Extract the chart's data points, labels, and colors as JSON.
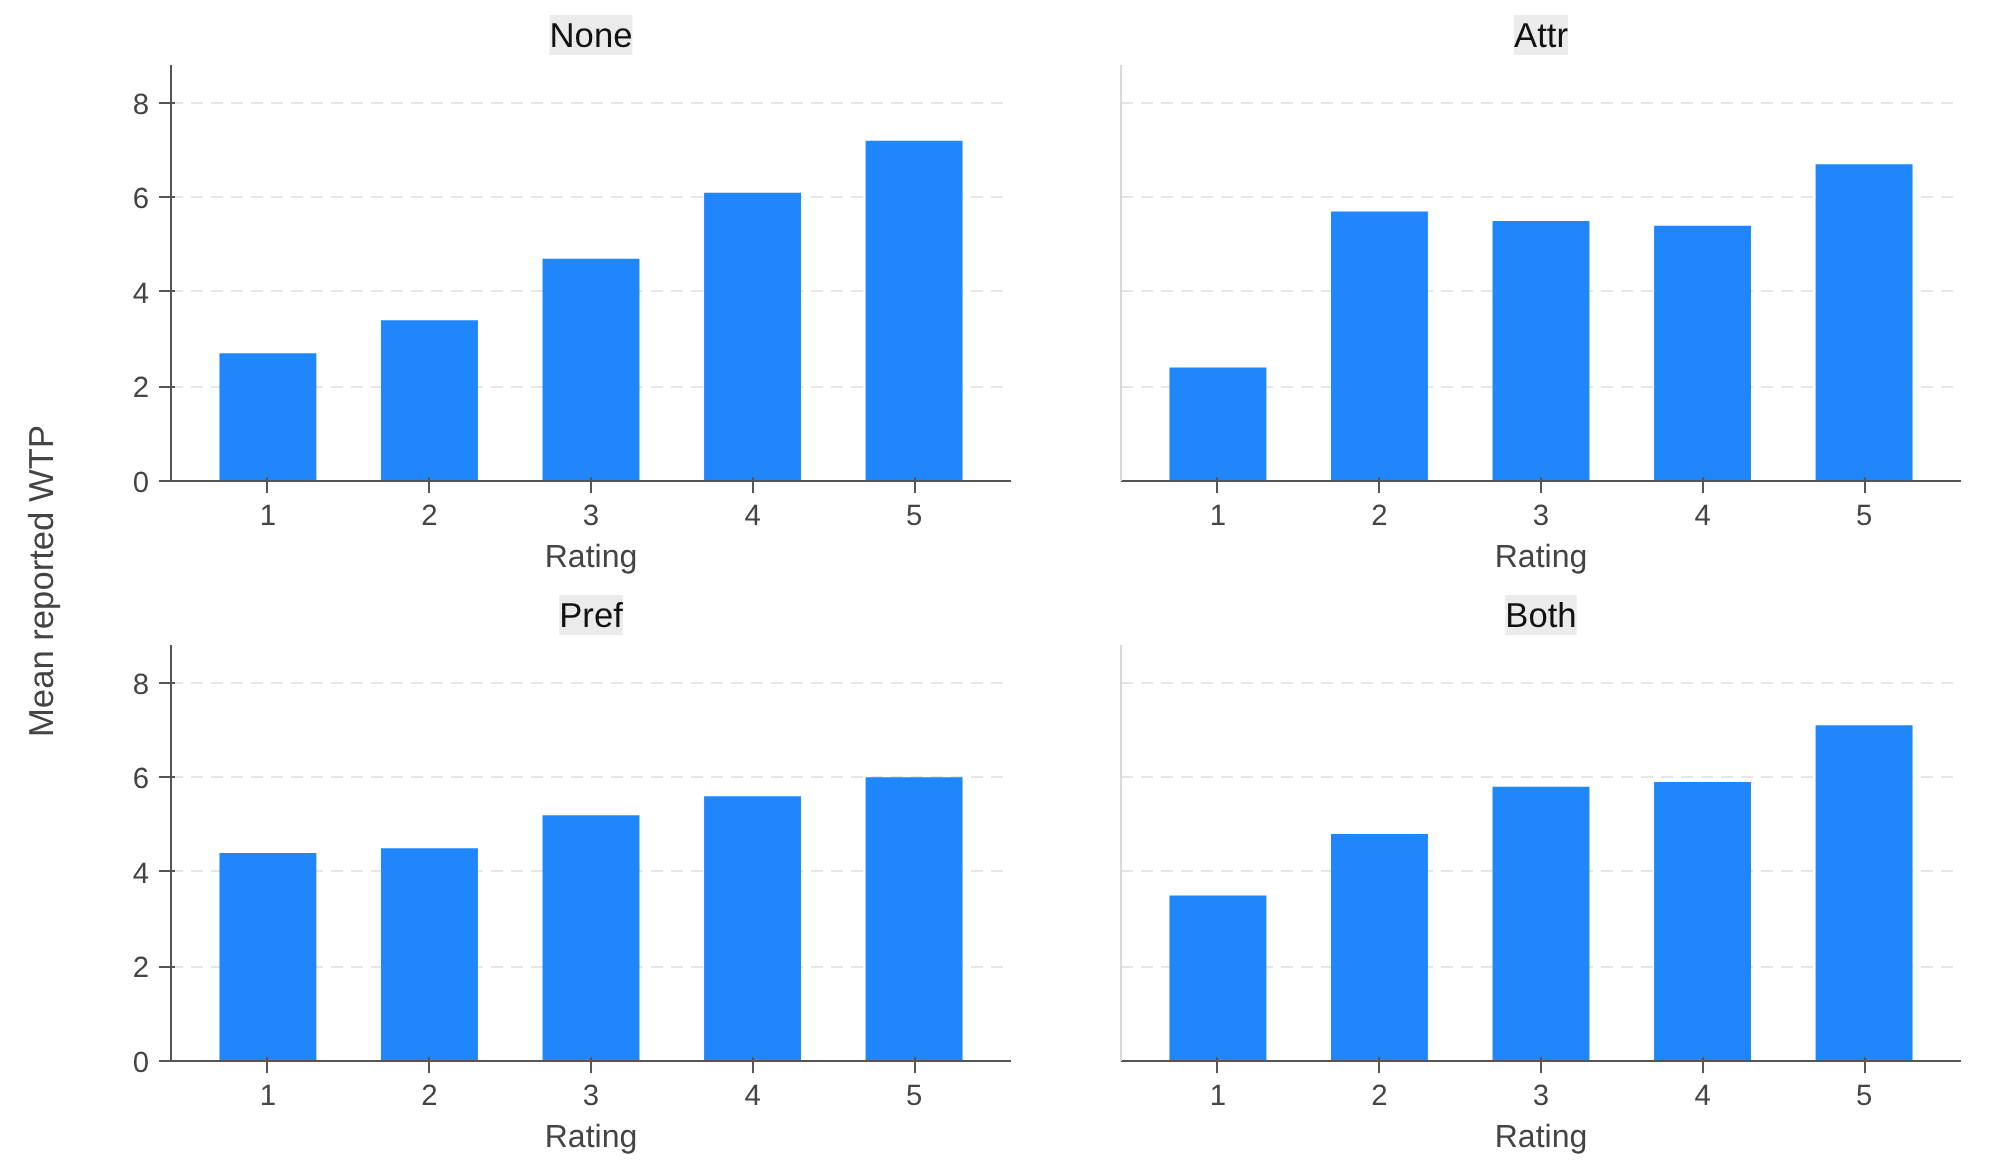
{
  "chart_data": [
    {
      "type": "bar",
      "title": "None",
      "xlabel": "Rating",
      "ylabel": "Mean reported WTP",
      "categories": [
        "1",
        "2",
        "3",
        "4",
        "5"
      ],
      "values": [
        2.7,
        3.4,
        4.7,
        6.1,
        7.2
      ],
      "color": "#1f87fb",
      "ylim": [
        0,
        8.8
      ],
      "yticks": [
        0,
        2,
        4,
        6,
        8
      ],
      "grid": "y"
    },
    {
      "type": "bar",
      "title": "Attr",
      "xlabel": "Rating",
      "categories": [
        "1",
        "2",
        "3",
        "4",
        "5"
      ],
      "values": [
        2.4,
        5.7,
        5.5,
        5.4,
        6.7
      ],
      "color": "#1f87fb",
      "ylim": [
        0,
        8.8
      ],
      "yticks": [
        0,
        2,
        4,
        6,
        8
      ],
      "grid": "y",
      "tick_labels": "x"
    },
    {
      "type": "bar",
      "title": "Pref",
      "xlabel": "Rating",
      "categories": [
        "1",
        "2",
        "3",
        "4",
        "5"
      ],
      "values": [
        4.4,
        4.5,
        5.2,
        5.6,
        6.0
      ],
      "color": "#1f87fb",
      "ylim": [
        0,
        8.8
      ],
      "yticks": [
        0,
        2,
        4,
        6,
        8
      ],
      "grid": "y"
    },
    {
      "type": "bar",
      "title": "Both",
      "xlabel": "Rating",
      "categories": [
        "1",
        "2",
        "3",
        "4",
        "5"
      ],
      "values": [
        3.5,
        4.8,
        5.8,
        5.9,
        7.1
      ],
      "color": "#1f87fb",
      "ylim": [
        0,
        8.8
      ],
      "yticks": [
        0,
        2,
        4,
        6,
        8
      ],
      "grid": "y",
      "tick_labels": "x"
    }
  ]
}
